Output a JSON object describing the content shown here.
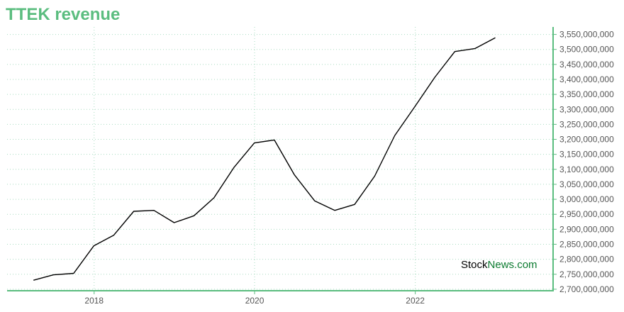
{
  "chart_data": {
    "type": "line",
    "title": "TTEK revenue",
    "xlabel": "",
    "ylabel": "",
    "x": [
      "2017-03-31",
      "2017-06-30",
      "2017-09-30",
      "2017-12-31",
      "2018-03-31",
      "2018-06-30",
      "2018-09-30",
      "2018-12-31",
      "2019-03-31",
      "2019-06-30",
      "2019-09-30",
      "2019-12-31",
      "2020-03-31",
      "2020-06-30",
      "2020-09-30",
      "2020-12-31",
      "2021-03-31",
      "2021-06-30",
      "2021-09-30",
      "2021-12-31",
      "2022-03-31",
      "2022-06-30",
      "2022-09-30",
      "2022-12-31"
    ],
    "series": [
      {
        "values": [
          2730000000,
          2748000000,
          2753000000,
          2845000000,
          2880000000,
          2960000000,
          2963000000,
          2922000000,
          2945000000,
          3005000000,
          3107000000,
          3188000000,
          3198000000,
          3082000000,
          2995000000,
          2963000000,
          2983000000,
          3077000000,
          3213000000,
          3310000000,
          3407000000,
          3493000000,
          3503000000,
          3539000000
        ]
      }
    ],
    "x_ticks": [
      "2018",
      "2020",
      "2022"
    ],
    "y_ticks": [
      "2,700,000,000",
      "2,750,000,000",
      "2,800,000,000",
      "2,850,000,000",
      "2,900,000,000",
      "2,950,000,000",
      "3,000,000,000",
      "3,050,000,000",
      "3,100,000,000",
      "3,150,000,000",
      "3,200,000,000",
      "3,250,000,000",
      "3,300,000,000",
      "3,350,000,000",
      "3,400,000,000",
      "3,450,000,000",
      "3,500,000,000",
      "3,550,000,000"
    ],
    "ylim": [
      2695000000,
      3575000000
    ],
    "xlim": [
      "2016-12-01",
      "2023-09-20"
    ],
    "grid": true,
    "y_axis_side": "right"
  },
  "watermark": {
    "part1": "Stock",
    "part2": "News",
    "part3": ".com"
  },
  "colors": {
    "accent": "#5bbd7f",
    "line": "#000000",
    "grid": "#a8dcc0"
  }
}
